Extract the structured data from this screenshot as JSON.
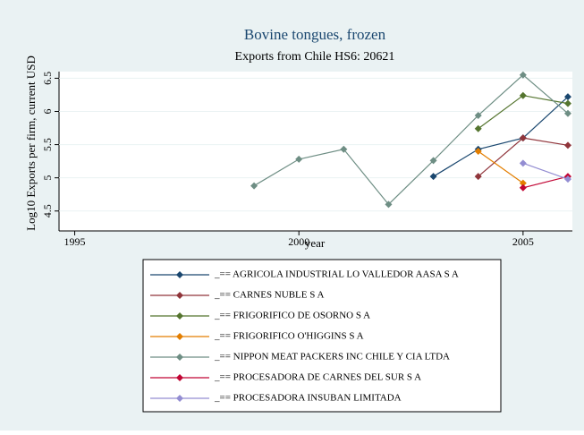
{
  "chart_data": {
    "type": "line",
    "title": "Bovine tongues, frozen",
    "subtitle": "Exports from Chile HS6: 20621",
    "x_label": "year",
    "y_label": "Log10 Exports per firm, current USD",
    "x": [
      1999,
      2000,
      2001,
      2002,
      2003,
      2004,
      2005,
      2006
    ],
    "xlim": [
      1994.65,
      2006.1
    ],
    "xticks": [
      1995,
      2000,
      2005
    ],
    "ylim": [
      4.2,
      6.6
    ],
    "yticks": [
      4.5,
      5,
      5.5,
      6,
      6.5
    ],
    "grid": true,
    "series": [
      {
        "name": "_== AGRICOLA INDUSTRIAL LO VALLEDOR AASA S A",
        "color": "#1a476f",
        "values": [
          null,
          null,
          null,
          null,
          5.02,
          5.43,
          5.6,
          6.22
        ]
      },
      {
        "name": "_== CARNES NUBLE S A",
        "color": "#90353b",
        "values": [
          null,
          null,
          null,
          null,
          null,
          5.02,
          5.6,
          5.49
        ]
      },
      {
        "name": "_== FRIGORIFICO DE OSORNO S A",
        "color": "#55752f",
        "values": [
          null,
          null,
          null,
          null,
          null,
          5.74,
          6.24,
          6.12
        ]
      },
      {
        "name": "_== FRIGORIFICO O'HIGGINS S A",
        "color": "#e37e00",
        "values": [
          null,
          null,
          null,
          null,
          null,
          5.4,
          4.92,
          null
        ]
      },
      {
        "name": "_== NIPPON MEAT PACKERS INC CHILE Y CIA LTDA",
        "color": "#6e8e84",
        "values": [
          4.88,
          5.28,
          5.43,
          4.6,
          5.26,
          5.94,
          6.55,
          5.97
        ]
      },
      {
        "name": "_== PROCESADORA DE CARNES DEL SUR S A",
        "color": "#c10534",
        "values": [
          null,
          null,
          null,
          null,
          null,
          null,
          4.85,
          5.02
        ]
      },
      {
        "name": "_== PROCESADORA INSUBAN LIMITADA",
        "color": "#938dd2",
        "values": [
          null,
          null,
          null,
          null,
          null,
          null,
          5.22,
          4.98
        ]
      }
    ]
  }
}
